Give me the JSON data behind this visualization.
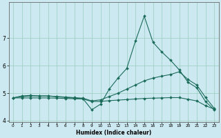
{
  "xlabel": "Humidex (Indice chaleur)",
  "background_color": "#cce8f0",
  "grid_color": "#99ccc0",
  "line_color": "#1a6b5a",
  "x": [
    0,
    1,
    2,
    3,
    4,
    5,
    6,
    7,
    8,
    9,
    10,
    11,
    12,
    13,
    14,
    15,
    16,
    17,
    18,
    19,
    20,
    21,
    22,
    23
  ],
  "line1_spiky": [
    4.83,
    4.9,
    4.92,
    4.9,
    4.9,
    4.87,
    4.85,
    4.82,
    4.8,
    4.4,
    4.6,
    5.15,
    5.55,
    5.9,
    6.9,
    7.8,
    6.85,
    6.5,
    6.2,
    5.85,
    5.4,
    5.2,
    4.7,
    4.4
  ],
  "line2_mid": [
    4.83,
    4.88,
    4.9,
    4.9,
    4.9,
    4.88,
    4.86,
    4.84,
    4.82,
    4.72,
    4.76,
    4.88,
    5.0,
    5.15,
    5.3,
    5.45,
    5.55,
    5.62,
    5.68,
    5.78,
    5.5,
    5.3,
    4.85,
    4.45
  ],
  "line3_flat": [
    4.83,
    4.83,
    4.83,
    4.83,
    4.83,
    4.82,
    4.81,
    4.8,
    4.79,
    4.7,
    4.7,
    4.73,
    4.75,
    4.77,
    4.79,
    4.81,
    4.82,
    4.83,
    4.84,
    4.84,
    4.78,
    4.72,
    4.55,
    4.42
  ],
  "xlim": [
    -0.5,
    23.5
  ],
  "ylim": [
    3.95,
    8.3
  ],
  "yticks": [
    4,
    5,
    6,
    7
  ],
  "xticks": [
    0,
    1,
    2,
    3,
    4,
    5,
    6,
    7,
    8,
    9,
    10,
    11,
    12,
    13,
    14,
    15,
    16,
    17,
    18,
    19,
    20,
    21,
    22,
    23
  ]
}
